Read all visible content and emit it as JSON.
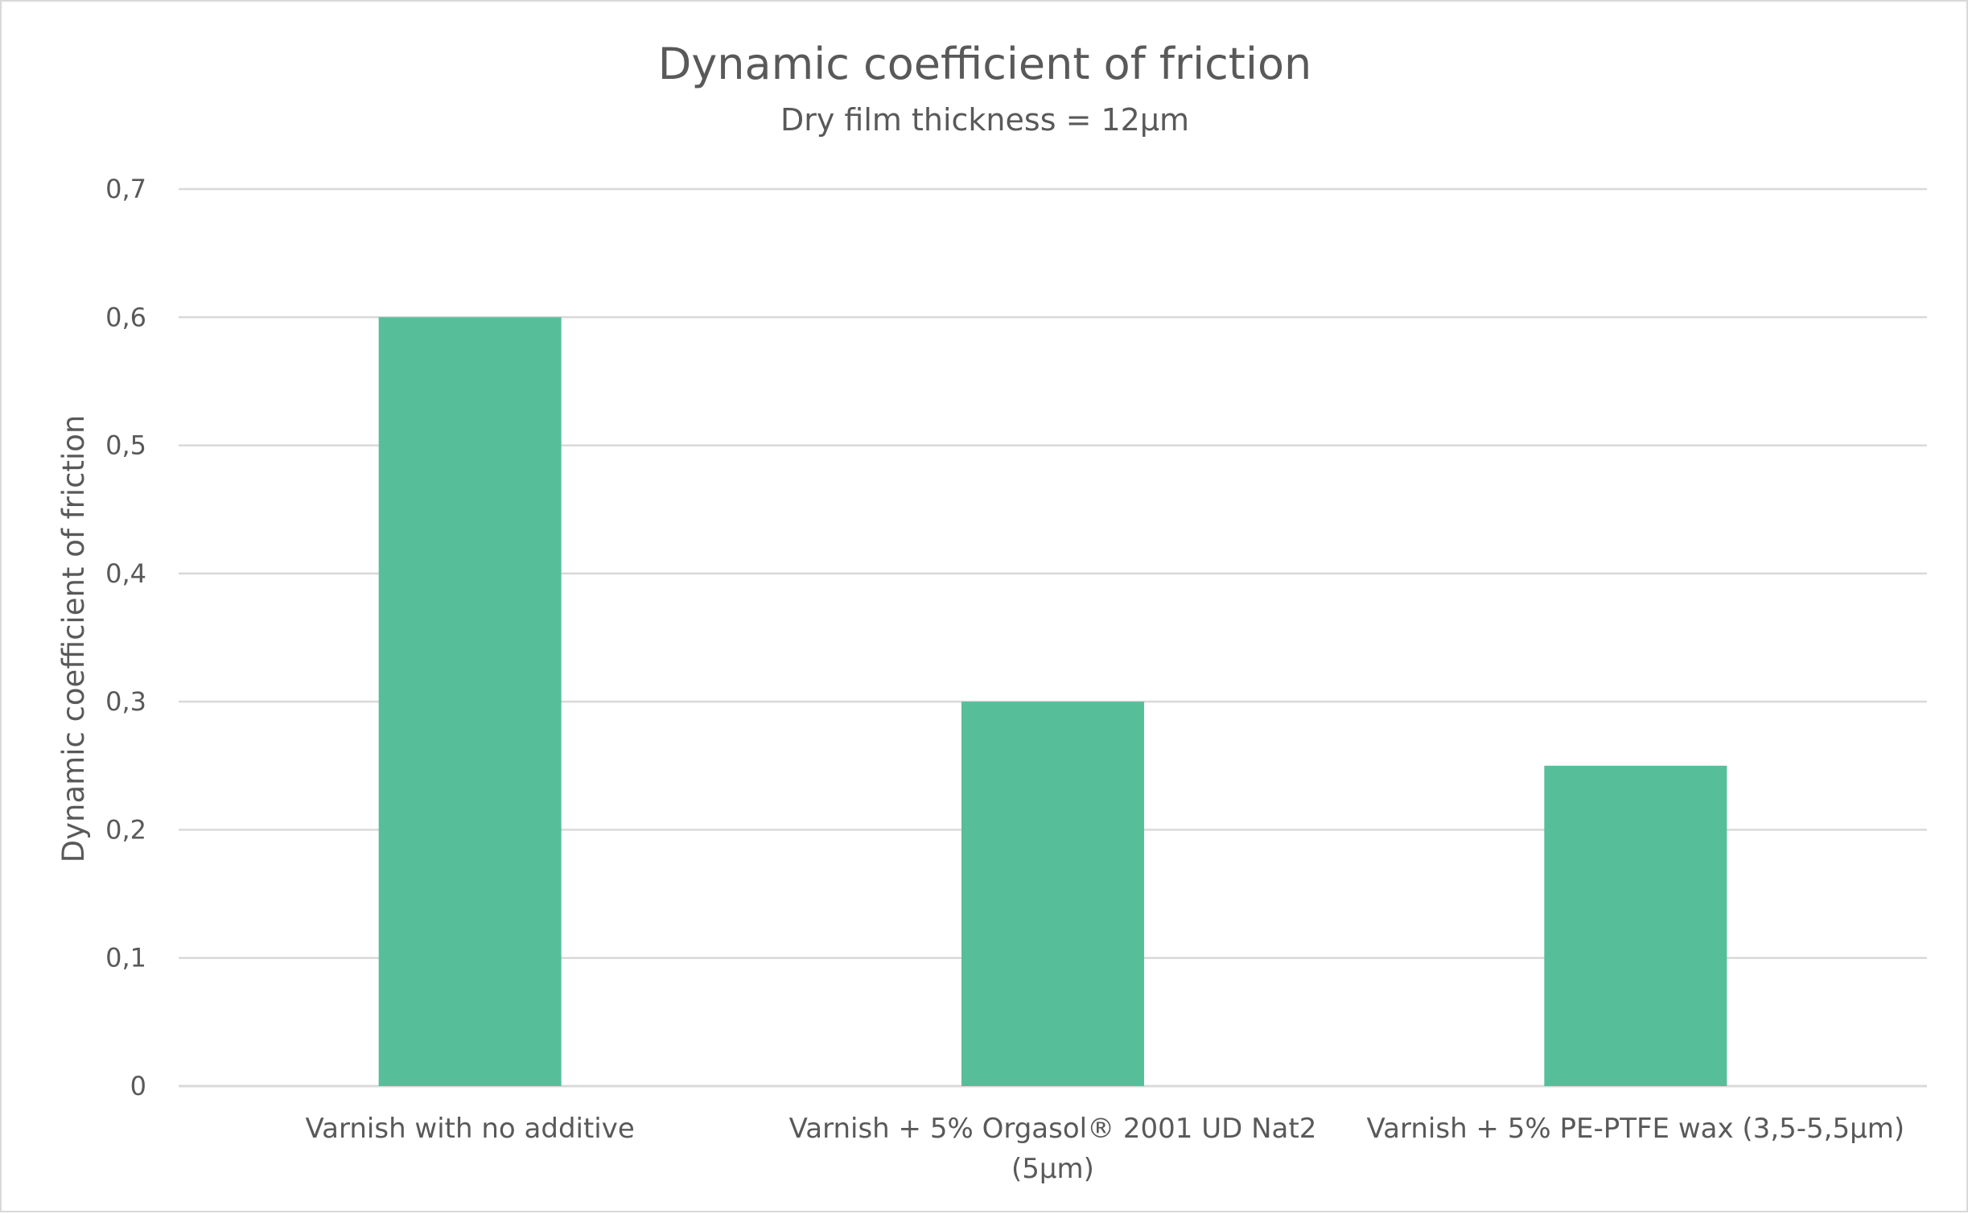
{
  "chart_data": {
    "type": "bar",
    "title": "Dynamic coefficient of friction",
    "subtitle": "Dry film thickness = 12µm",
    "ylabel": "Dynamic coefficient of friction",
    "xlabel": "",
    "categories": [
      [
        "Varnish with no additive"
      ],
      [
        "Varnish + 5% Orgasol® 2001 UD Nat2",
        "(5µm)"
      ],
      [
        "Varnish + 5% PE-PTFE wax (3,5-5,5µm)"
      ]
    ],
    "values": [
      0.6,
      0.3,
      0.25
    ],
    "ylim": [
      0,
      0.7
    ],
    "yticks": [
      0,
      0.1,
      0.2,
      0.3,
      0.4,
      0.5,
      0.6,
      0.7
    ],
    "ytick_labels": [
      "0",
      "0,1",
      "0,2",
      "0,3",
      "0,4",
      "0,5",
      "0,6",
      "0,7"
    ],
    "grid": true,
    "legend": "none",
    "bar_color": "#56bf9a"
  }
}
